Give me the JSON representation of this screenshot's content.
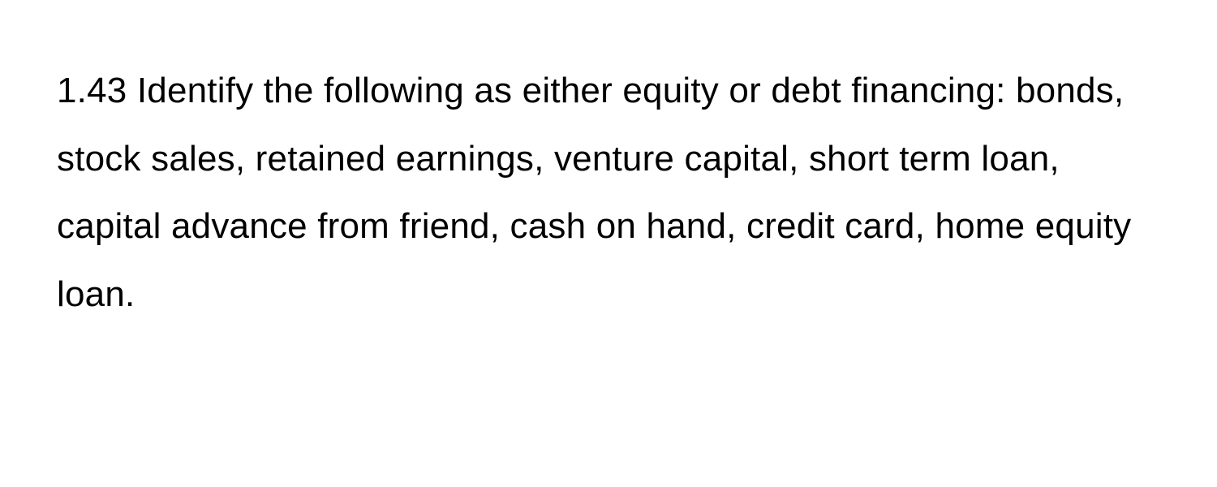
{
  "question": {
    "number": "1.43",
    "text": "1.43 Identify the following as either equity or debt financing: bonds, stock sales, retained earnings, venture capital, short term loan, capital advance from friend, cash on hand, credit card, home equity loan.",
    "font_size": 44,
    "line_height": 1.9,
    "text_color": "#000000",
    "background_color": "#ffffff"
  }
}
